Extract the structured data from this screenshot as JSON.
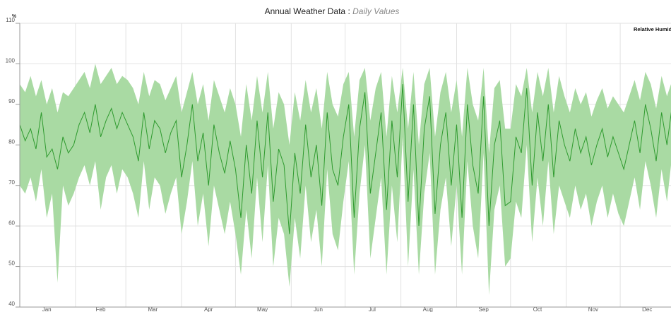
{
  "chart_data": {
    "type": "band-line",
    "title": "Annual Weather Data",
    "title_separator": ":",
    "subtitle": "Daily Values",
    "ylabel": "%",
    "x": [
      0,
      3,
      6,
      9,
      12,
      15,
      18,
      21,
      24,
      27,
      30,
      33,
      36,
      39,
      42,
      45,
      48,
      51,
      54,
      57,
      60,
      63,
      66,
      69,
      72,
      75,
      78,
      81,
      84,
      87,
      90,
      93,
      96,
      99,
      102,
      105,
      108,
      111,
      114,
      117,
      120,
      123,
      126,
      129,
      132,
      135,
      138,
      141,
      144,
      147,
      150,
      153,
      156,
      159,
      162,
      165,
      168,
      171,
      174,
      177,
      180,
      183,
      186,
      189,
      192,
      195,
      198,
      201,
      204,
      207,
      210,
      213,
      216,
      219,
      222,
      225,
      228,
      231,
      234,
      237,
      240,
      243,
      246,
      249,
      252,
      255,
      258,
      261,
      264,
      267,
      270,
      273,
      276,
      279,
      282,
      285,
      288,
      291,
      294,
      297,
      300,
      303,
      306,
      309,
      312,
      315,
      318,
      321,
      324,
      327,
      330,
      333,
      336,
      339,
      342,
      345,
      348,
      351,
      354,
      357,
      360,
      363
    ],
    "series": [
      {
        "name": "Relative Humidity",
        "color": "#2e9a2e",
        "values": [
          85,
          81,
          84,
          79,
          88,
          77,
          79,
          74,
          82,
          78,
          80,
          85,
          88,
          83,
          90,
          82,
          86,
          89,
          84,
          88,
          85,
          82,
          76,
          88,
          79,
          86,
          84,
          78,
          83,
          86,
          72,
          80,
          90,
          76,
          83,
          70,
          85,
          78,
          73,
          81,
          74,
          62,
          80,
          68,
          86,
          72,
          88,
          66,
          79,
          75,
          58,
          78,
          68,
          85,
          72,
          80,
          65,
          88,
          74,
          70,
          82,
          90,
          62,
          84,
          93,
          68,
          78,
          88,
          64,
          86,
          72,
          95,
          66,
          90,
          60,
          84,
          92,
          63,
          80,
          88,
          70,
          85,
          62,
          90,
          75,
          68,
          92,
          60,
          80,
          86,
          65,
          66,
          82,
          78,
          94,
          70,
          88,
          76,
          90,
          72,
          86,
          80,
          76,
          84,
          78,
          82,
          75,
          80,
          84,
          77,
          82,
          78,
          74,
          80,
          86,
          78,
          90,
          84,
          76,
          88,
          80,
          90
        ]
      }
    ],
    "band": {
      "color": "#a9daa3",
      "high": [
        95,
        93,
        97,
        92,
        96,
        90,
        94,
        88,
        93,
        92,
        94,
        96,
        98,
        94,
        100,
        95,
        97,
        99,
        95,
        97,
        96,
        94,
        90,
        98,
        92,
        96,
        95,
        91,
        94,
        97,
        88,
        93,
        98,
        90,
        95,
        86,
        96,
        92,
        88,
        94,
        90,
        82,
        95,
        86,
        97,
        88,
        98,
        84,
        93,
        90,
        80,
        93,
        86,
        96,
        88,
        94,
        84,
        98,
        90,
        87,
        95,
        98,
        82,
        96,
        99,
        86,
        94,
        98,
        82,
        97,
        88,
        99,
        84,
        98,
        80,
        95,
        99,
        82,
        93,
        98,
        88,
        96,
        82,
        99,
        90,
        86,
        99,
        78,
        94,
        96,
        84,
        84,
        95,
        92,
        99,
        88,
        98,
        92,
        99,
        88,
        97,
        92,
        88,
        94,
        90,
        93,
        87,
        91,
        94,
        89,
        92,
        90,
        88,
        92,
        96,
        91,
        98,
        95,
        89,
        97,
        92,
        96
      ],
      "low": [
        70,
        68,
        72,
        66,
        74,
        62,
        68,
        46,
        70,
        65,
        68,
        72,
        75,
        70,
        76,
        64,
        72,
        75,
        68,
        74,
        72,
        68,
        62,
        76,
        64,
        72,
        70,
        63,
        68,
        72,
        58,
        66,
        76,
        60,
        68,
        55,
        70,
        64,
        58,
        66,
        58,
        48,
        64,
        52,
        72,
        56,
        75,
        50,
        62,
        58,
        45,
        62,
        52,
        70,
        56,
        64,
        50,
        74,
        58,
        54,
        66,
        76,
        48,
        68,
        80,
        52,
        62,
        72,
        48,
        70,
        56,
        82,
        50,
        74,
        48,
        68,
        78,
        48,
        64,
        72,
        55,
        70,
        48,
        76,
        60,
        52,
        78,
        43,
        64,
        70,
        50,
        52,
        66,
        62,
        80,
        56,
        72,
        60,
        76,
        58,
        70,
        66,
        62,
        70,
        64,
        68,
        60,
        66,
        70,
        62,
        68,
        63,
        60,
        66,
        72,
        64,
        76,
        70,
        62,
        74,
        66,
        78
      ]
    },
    "xlim": [
      0,
      365
    ],
    "xticks": [
      {
        "value": 15,
        "label": "Jan"
      },
      {
        "value": 45,
        "label": "Feb"
      },
      {
        "value": 74,
        "label": "Mar"
      },
      {
        "value": 105,
        "label": "Apr"
      },
      {
        "value": 135,
        "label": "May"
      },
      {
        "value": 166,
        "label": "Jun"
      },
      {
        "value": 196,
        "label": "Jul"
      },
      {
        "value": 227,
        "label": "Aug"
      },
      {
        "value": 258,
        "label": "Sep"
      },
      {
        "value": 288,
        "label": "Oct"
      },
      {
        "value": 319,
        "label": "Nov"
      },
      {
        "value": 349,
        "label": "Dec"
      }
    ],
    "xgrid": [
      0,
      31,
      59,
      90,
      120,
      151,
      181,
      212,
      243,
      273,
      304,
      334
    ],
    "ylim": [
      40,
      110
    ],
    "yticks": [
      40,
      50,
      60,
      70,
      80,
      90,
      100,
      110
    ],
    "grid": true
  }
}
